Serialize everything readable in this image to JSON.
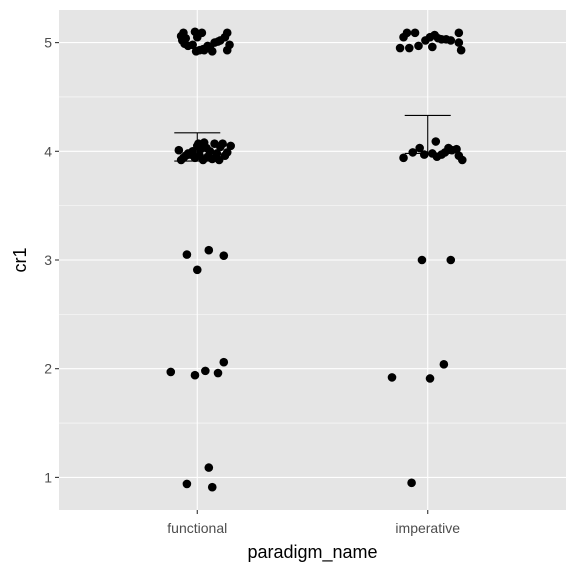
{
  "chart_data": {
    "type": "scatter",
    "title": "",
    "xlabel": "paradigm_name",
    "ylabel": "cr1",
    "categories": [
      "functional",
      "imperative"
    ],
    "ylim": [
      0.7,
      5.3
    ],
    "yticks": [
      1,
      2,
      3,
      4,
      5
    ],
    "grid": true,
    "legend": "none",
    "colors": {
      "panel_background": "#e5e5e5",
      "grid": "#ffffff",
      "points": "#000000",
      "tick_text": "#4d4d4d",
      "axis_title": "#000000"
    },
    "points": [
      {
        "x": "functional",
        "jitter": -0.07,
        "y": 5.06
      },
      {
        "x": "functional",
        "jitter": -0.065,
        "y": 5.02
      },
      {
        "x": "functional",
        "jitter": -0.06,
        "y": 5.09
      },
      {
        "x": "functional",
        "jitter": -0.055,
        "y": 4.99
      },
      {
        "x": "functional",
        "jitter": -0.05,
        "y": 5.04
      },
      {
        "x": "functional",
        "jitter": -0.04,
        "y": 4.97
      },
      {
        "x": "functional",
        "jitter": -0.02,
        "y": 4.98
      },
      {
        "x": "functional",
        "jitter": -0.01,
        "y": 5.1
      },
      {
        "x": "functional",
        "jitter": -0.005,
        "y": 4.92
      },
      {
        "x": "functional",
        "jitter": 0.0,
        "y": 5.05
      },
      {
        "x": "functional",
        "jitter": 0.01,
        "y": 4.93
      },
      {
        "x": "functional",
        "jitter": 0.02,
        "y": 5.09
      },
      {
        "x": "functional",
        "jitter": 0.025,
        "y": 4.94
      },
      {
        "x": "functional",
        "jitter": 0.03,
        "y": 4.93
      },
      {
        "x": "functional",
        "jitter": 0.045,
        "y": 4.97
      },
      {
        "x": "functional",
        "jitter": 0.055,
        "y": 4.95
      },
      {
        "x": "functional",
        "jitter": 0.065,
        "y": 4.92
      },
      {
        "x": "functional",
        "jitter": 0.075,
        "y": 5.0
      },
      {
        "x": "functional",
        "jitter": 0.09,
        "y": 5.01
      },
      {
        "x": "functional",
        "jitter": 0.1,
        "y": 5.02
      },
      {
        "x": "functional",
        "jitter": 0.12,
        "y": 5.05
      },
      {
        "x": "functional",
        "jitter": 0.13,
        "y": 4.93
      },
      {
        "x": "functional",
        "jitter": 0.14,
        "y": 4.98
      },
      {
        "x": "functional",
        "jitter": 0.13,
        "y": 5.09
      },
      {
        "x": "functional",
        "jitter": -0.08,
        "y": 4.01
      },
      {
        "x": "functional",
        "jitter": -0.07,
        "y": 3.92
      },
      {
        "x": "functional",
        "jitter": -0.06,
        "y": 3.94
      },
      {
        "x": "functional",
        "jitter": -0.05,
        "y": 3.96
      },
      {
        "x": "functional",
        "jitter": -0.04,
        "y": 3.98
      },
      {
        "x": "functional",
        "jitter": -0.03,
        "y": 3.97
      },
      {
        "x": "functional",
        "jitter": -0.02,
        "y": 4.0
      },
      {
        "x": "functional",
        "jitter": -0.01,
        "y": 3.94
      },
      {
        "x": "functional",
        "jitter": 0.0,
        "y": 4.05
      },
      {
        "x": "functional",
        "jitter": 0.005,
        "y": 4.07
      },
      {
        "x": "functional",
        "jitter": 0.01,
        "y": 3.96
      },
      {
        "x": "functional",
        "jitter": 0.015,
        "y": 4.02
      },
      {
        "x": "functional",
        "jitter": 0.02,
        "y": 4.06
      },
      {
        "x": "functional",
        "jitter": 0.025,
        "y": 3.92
      },
      {
        "x": "functional",
        "jitter": 0.03,
        "y": 4.08
      },
      {
        "x": "functional",
        "jitter": 0.04,
        "y": 4.03
      },
      {
        "x": "functional",
        "jitter": 0.045,
        "y": 3.95
      },
      {
        "x": "functional",
        "jitter": 0.055,
        "y": 4.0
      },
      {
        "x": "functional",
        "jitter": 0.065,
        "y": 3.93
      },
      {
        "x": "functional",
        "jitter": 0.075,
        "y": 4.07
      },
      {
        "x": "functional",
        "jitter": 0.085,
        "y": 3.98
      },
      {
        "x": "functional",
        "jitter": 0.095,
        "y": 3.92
      },
      {
        "x": "functional",
        "jitter": 0.1,
        "y": 4.04
      },
      {
        "x": "functional",
        "jitter": 0.11,
        "y": 4.07
      },
      {
        "x": "functional",
        "jitter": 0.12,
        "y": 3.96
      },
      {
        "x": "functional",
        "jitter": 0.13,
        "y": 3.99
      },
      {
        "x": "functional",
        "jitter": 0.145,
        "y": 4.05
      },
      {
        "x": "functional",
        "jitter": -0.045,
        "y": 3.05
      },
      {
        "x": "functional",
        "jitter": 0.0,
        "y": 2.91
      },
      {
        "x": "functional",
        "jitter": 0.05,
        "y": 3.09
      },
      {
        "x": "functional",
        "jitter": 0.115,
        "y": 3.04
      },
      {
        "x": "functional",
        "jitter": -0.115,
        "y": 1.97
      },
      {
        "x": "functional",
        "jitter": -0.01,
        "y": 1.94
      },
      {
        "x": "functional",
        "jitter": 0.035,
        "y": 1.98
      },
      {
        "x": "functional",
        "jitter": 0.09,
        "y": 1.96
      },
      {
        "x": "functional",
        "jitter": 0.115,
        "y": 2.06
      },
      {
        "x": "functional",
        "jitter": -0.045,
        "y": 0.94
      },
      {
        "x": "functional",
        "jitter": 0.05,
        "y": 1.09
      },
      {
        "x": "functional",
        "jitter": 0.065,
        "y": 0.91
      },
      {
        "x": "imperative",
        "jitter": -0.12,
        "y": 4.95
      },
      {
        "x": "imperative",
        "jitter": -0.105,
        "y": 5.05
      },
      {
        "x": "imperative",
        "jitter": -0.09,
        "y": 5.09
      },
      {
        "x": "imperative",
        "jitter": -0.08,
        "y": 4.95
      },
      {
        "x": "imperative",
        "jitter": -0.055,
        "y": 5.09
      },
      {
        "x": "imperative",
        "jitter": -0.04,
        "y": 4.97
      },
      {
        "x": "imperative",
        "jitter": -0.01,
        "y": 5.02
      },
      {
        "x": "imperative",
        "jitter": 0.01,
        "y": 5.05
      },
      {
        "x": "imperative",
        "jitter": 0.02,
        "y": 4.96
      },
      {
        "x": "imperative",
        "jitter": 0.03,
        "y": 5.07
      },
      {
        "x": "imperative",
        "jitter": 0.045,
        "y": 5.04
      },
      {
        "x": "imperative",
        "jitter": 0.06,
        "y": 5.03
      },
      {
        "x": "imperative",
        "jitter": 0.08,
        "y": 5.03
      },
      {
        "x": "imperative",
        "jitter": 0.1,
        "y": 5.02
      },
      {
        "x": "imperative",
        "jitter": 0.135,
        "y": 5.09
      },
      {
        "x": "imperative",
        "jitter": 0.135,
        "y": 5.0
      },
      {
        "x": "imperative",
        "jitter": 0.145,
        "y": 4.93
      },
      {
        "x": "imperative",
        "jitter": -0.105,
        "y": 3.94
      },
      {
        "x": "imperative",
        "jitter": -0.065,
        "y": 3.99
      },
      {
        "x": "imperative",
        "jitter": -0.035,
        "y": 4.03
      },
      {
        "x": "imperative",
        "jitter": -0.015,
        "y": 3.97
      },
      {
        "x": "imperative",
        "jitter": 0.02,
        "y": 3.98
      },
      {
        "x": "imperative",
        "jitter": 0.035,
        "y": 4.09
      },
      {
        "x": "imperative",
        "jitter": 0.04,
        "y": 3.95
      },
      {
        "x": "imperative",
        "jitter": 0.06,
        "y": 3.97
      },
      {
        "x": "imperative",
        "jitter": 0.075,
        "y": 3.99
      },
      {
        "x": "imperative",
        "jitter": 0.09,
        "y": 4.03
      },
      {
        "x": "imperative",
        "jitter": 0.105,
        "y": 4.01
      },
      {
        "x": "imperative",
        "jitter": 0.125,
        "y": 4.02
      },
      {
        "x": "imperative",
        "jitter": 0.135,
        "y": 3.96
      },
      {
        "x": "imperative",
        "jitter": 0.15,
        "y": 3.92
      },
      {
        "x": "imperative",
        "jitter": -0.025,
        "y": 3.0
      },
      {
        "x": "imperative",
        "jitter": 0.1,
        "y": 3.0
      },
      {
        "x": "imperative",
        "jitter": -0.155,
        "y": 1.92
      },
      {
        "x": "imperative",
        "jitter": 0.01,
        "y": 1.91
      },
      {
        "x": "imperative",
        "jitter": 0.07,
        "y": 2.04
      },
      {
        "x": "imperative",
        "jitter": -0.07,
        "y": 0.95
      }
    ],
    "error_bars": [
      {
        "x": "functional",
        "ymin": 3.91,
        "ymax": 4.17
      },
      {
        "x": "imperative",
        "ymin": 3.98,
        "ymax": 4.33
      }
    ]
  }
}
